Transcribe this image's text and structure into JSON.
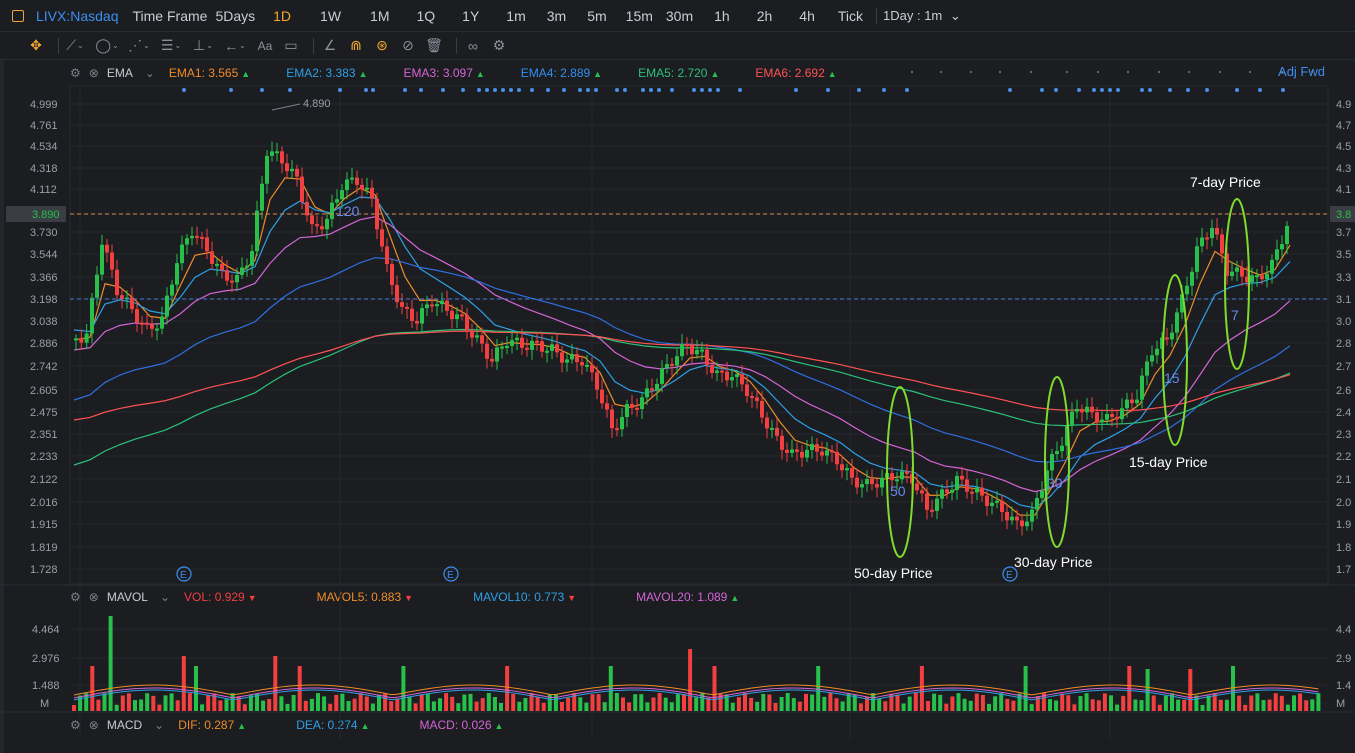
{
  "header": {
    "symbol": "LIVX:Nasdaq",
    "timeframe_label": "Time Frame",
    "timeframes": [
      "5Days",
      "1D",
      "1W",
      "1M",
      "1Q",
      "1Y",
      "1m",
      "3m",
      "5m",
      "15m",
      "30m",
      "1h",
      "2h",
      "4h",
      "Tick"
    ],
    "active_timeframe": "1D",
    "interval_select": "1Day : 1m"
  },
  "toolbar": {
    "icons": [
      "crosshair-icon",
      "line-tool-icon",
      "circle-tool-icon",
      "pattern-tool-icon",
      "fib-tool-icon",
      "anchor-tool-icon",
      "arrow-tool-icon",
      "text-tool-icon",
      "comment-tool-icon",
      "ruler-icon",
      "magnet-icon",
      "lock-icon",
      "hide-icon",
      "trash-icon",
      "link-icon",
      "settings-icon"
    ],
    "text_tool_label": "Aa"
  },
  "ema": {
    "name": "EMA",
    "items": [
      {
        "label": "EMA1: 3.565",
        "color": "#f08c28"
      },
      {
        "label": "EMA2: 3.383",
        "color": "#2ea0e6"
      },
      {
        "label": "EMA3: 3.097",
        "color": "#d465d6"
      },
      {
        "label": "EMA4: 2.889",
        "color": "#2f6fe0"
      },
      {
        "label": "EMA5: 2.720",
        "color": "#2cc07a"
      },
      {
        "label": "EMA6: 2.692",
        "color": "#ff5252"
      }
    ],
    "adj_label": "Adj Fwd"
  },
  "mavol": {
    "name": "MAVOL",
    "items": [
      {
        "label": "VOL: 0.929",
        "color": "#f23f3f",
        "dir": "down"
      },
      {
        "label": "MAVOL5: 0.883",
        "color": "#f08c28",
        "dir": "down"
      },
      {
        "label": "MAVOL10: 0.773",
        "color": "#2ea0e6",
        "dir": "down"
      },
      {
        "label": "MAVOL20: 1.089",
        "color": "#d465d6",
        "dir": "up"
      }
    ]
  },
  "macd": {
    "name": "MACD",
    "items": [
      {
        "label": "DIF: 0.287",
        "color": "#f08c28",
        "dir": "up"
      },
      {
        "label": "DEA: 0.274",
        "color": "#2ea0e6",
        "dir": "up"
      },
      {
        "label": "MACD: 0.026",
        "color": "#d465d6",
        "dir": "up"
      }
    ]
  },
  "price_axis": {
    "left_ticks": [
      "4.999",
      "4.761",
      "4.534",
      "4.318",
      "4.112",
      "3.890",
      "3.730",
      "3.544",
      "3.366",
      "3.198",
      "3.038",
      "2.886",
      "2.742",
      "2.605",
      "2.475",
      "2.351",
      "2.233",
      "2.122",
      "2.016",
      "1.915",
      "1.819",
      "1.728"
    ],
    "right_ticks": [
      "4.9",
      "4.7",
      "4.5",
      "4.3",
      "4.1",
      "3.8",
      "3.7",
      "3.5",
      "3.3",
      "3.1",
      "3.0",
      "2.8",
      "2.7",
      "2.6",
      "2.4",
      "2.3",
      "2.2",
      "2.1",
      "2.0",
      "1.9",
      "1.8",
      "1.7"
    ],
    "current_price": "3.890",
    "current_right": "3.8",
    "high_label": "4.890"
  },
  "volume_axis": {
    "left_ticks": [
      "4.464",
      "2.976",
      "1.488",
      "M"
    ],
    "right_ticks": [
      "4.4",
      "2.9",
      "1.4",
      "M"
    ]
  },
  "annotations": [
    {
      "text": "7-day Price"
    },
    {
      "text": "15-day Price"
    },
    {
      "text": "30-day Price"
    },
    {
      "text": "50-day Price"
    }
  ],
  "marker_labels": [
    "120",
    "50",
    "30",
    "15",
    "7",
    "E",
    "E",
    "E"
  ],
  "colors": {
    "up": "#27c04a",
    "down": "#f23f3f",
    "bg": "#1b1d21",
    "grid": "#262930",
    "accent": "#f0a830",
    "link": "#3d8ef0",
    "circle": "#7ddc2c"
  }
}
